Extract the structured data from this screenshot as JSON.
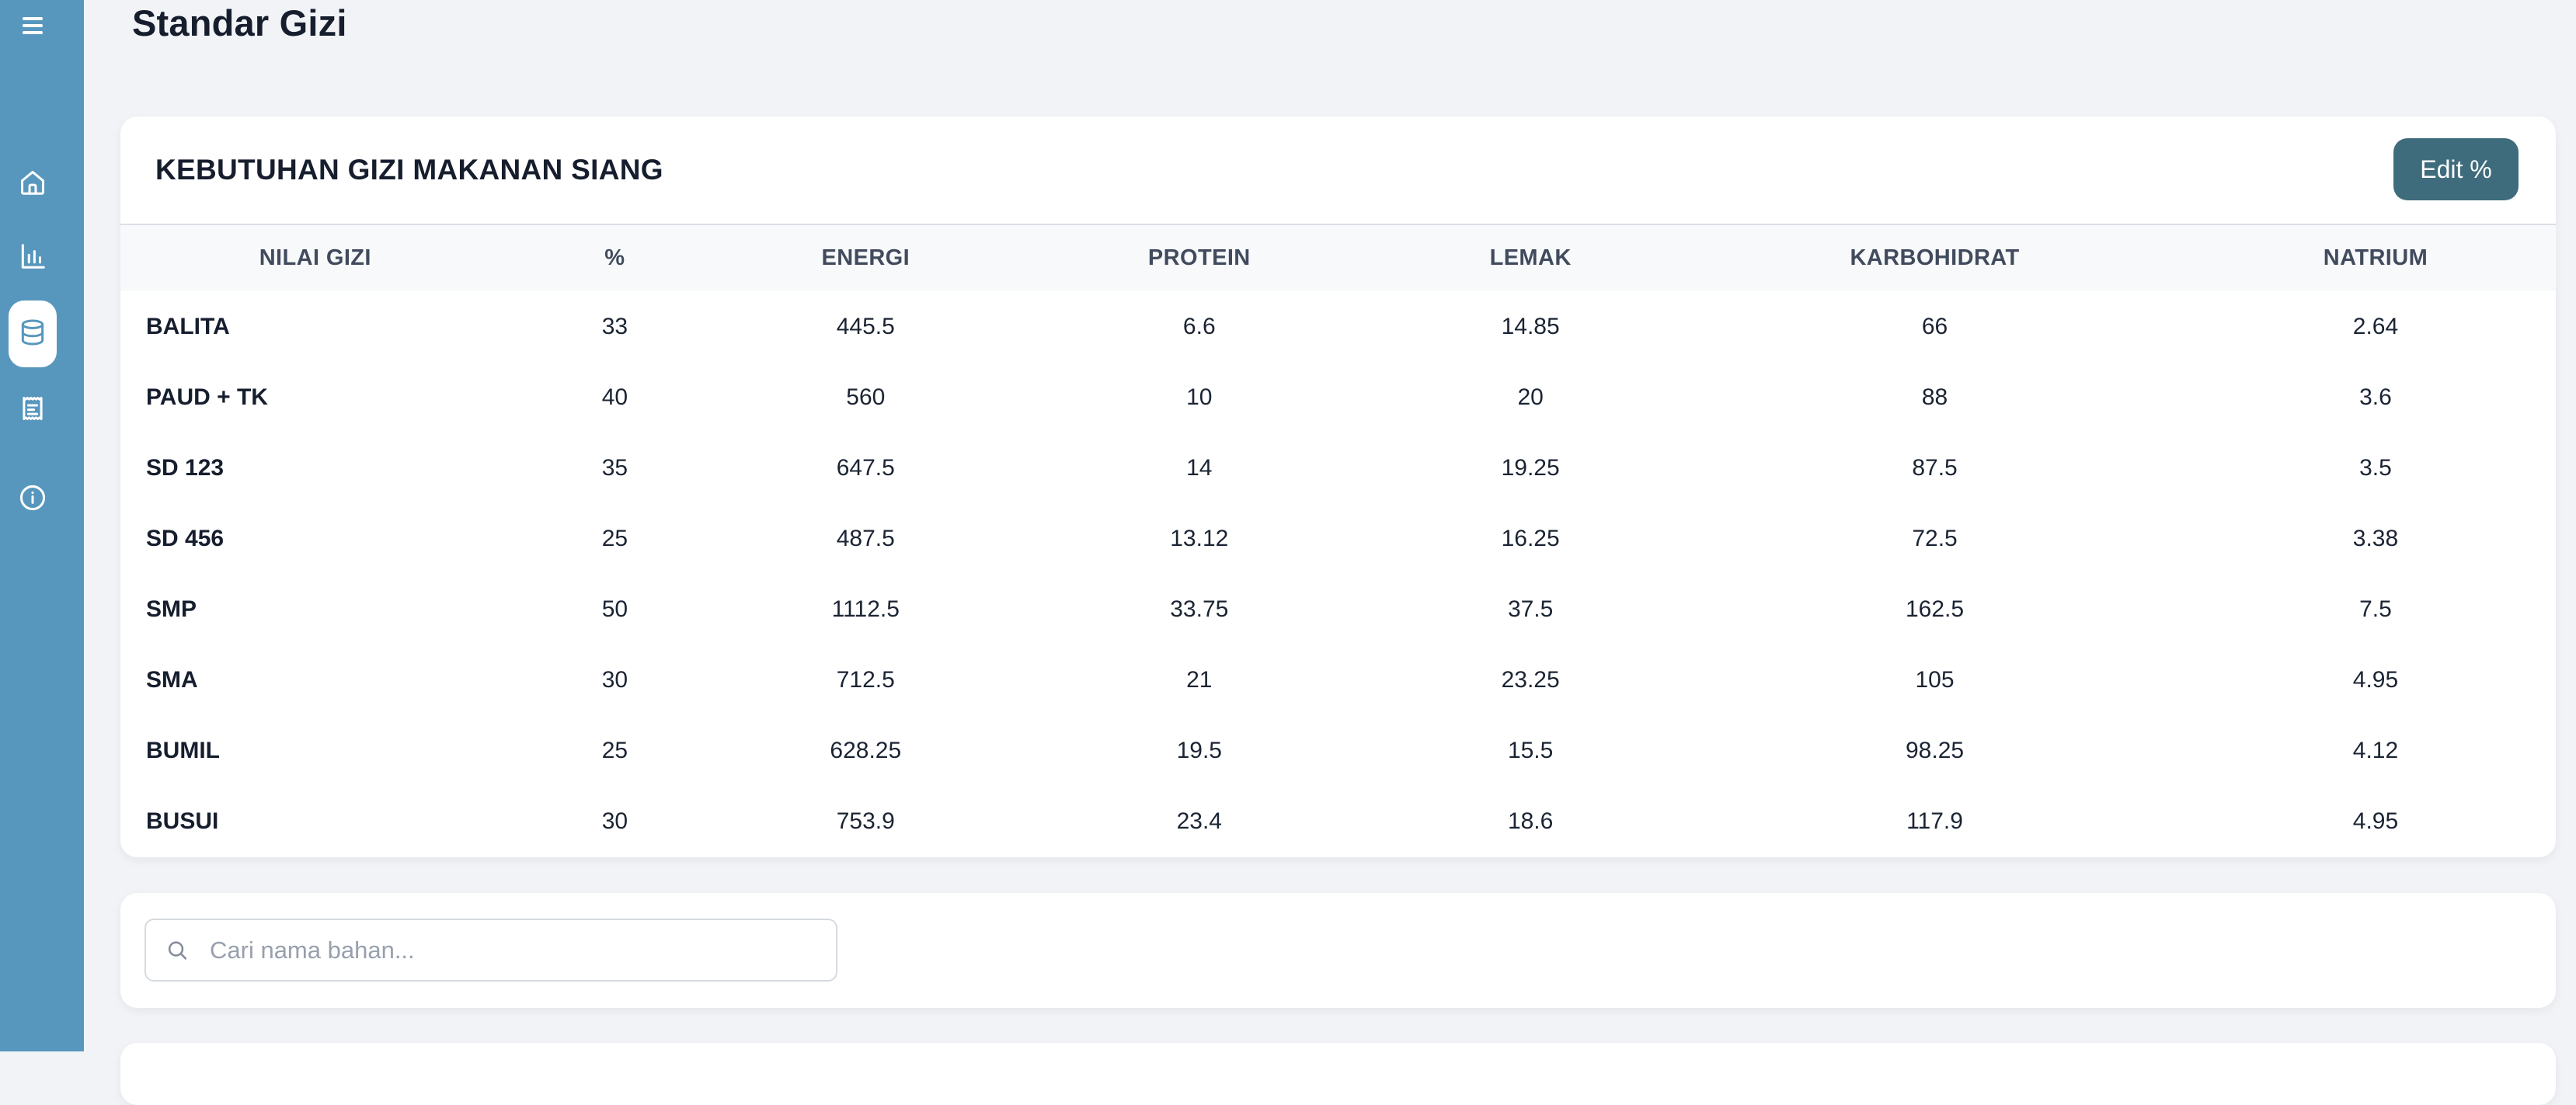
{
  "page": {
    "title": "Standar Gizi"
  },
  "sidebar": {
    "color": "#5897bd",
    "items": [
      {
        "id": "home",
        "icon": "home-icon",
        "active": false
      },
      {
        "id": "statistics",
        "icon": "bar-chart-icon",
        "active": false
      },
      {
        "id": "standar-gizi",
        "icon": "database-icon",
        "active": true
      },
      {
        "id": "reports",
        "icon": "receipt-icon",
        "active": false
      },
      {
        "id": "info",
        "icon": "info-icon",
        "active": false
      }
    ]
  },
  "card": {
    "heading": "KEBUTUHAN GIZI MAKANAN SIANG",
    "edit_button_label": "Edit %",
    "edit_button_color": "#3e6c7c"
  },
  "table": {
    "columns": [
      "NILAI GIZI",
      "%",
      "ENERGI",
      "PROTEIN",
      "LEMAK",
      "KARBOHIDRAT",
      "NATRIUM"
    ],
    "rows": [
      [
        "BALITA",
        "33",
        "445.5",
        "6.6",
        "14.85",
        "66",
        "2.64"
      ],
      [
        "PAUD + TK",
        "40",
        "560",
        "10",
        "20",
        "88",
        "3.6"
      ],
      [
        "SD 123",
        "35",
        "647.5",
        "14",
        "19.25",
        "87.5",
        "3.5"
      ],
      [
        "SD 456",
        "25",
        "487.5",
        "13.12",
        "16.25",
        "72.5",
        "3.38"
      ],
      [
        "SMP",
        "50",
        "1112.5",
        "33.75",
        "37.5",
        "162.5",
        "7.5"
      ],
      [
        "SMA",
        "30",
        "712.5",
        "21",
        "23.25",
        "105",
        "4.95"
      ],
      [
        "BUMIL",
        "25",
        "628.25",
        "19.5",
        "15.5",
        "98.25",
        "4.12"
      ],
      [
        "BUSUI",
        "30",
        "753.9",
        "23.4",
        "18.6",
        "117.9",
        "4.95"
      ]
    ]
  },
  "search": {
    "placeholder": "Cari nama bahan...",
    "value": ""
  },
  "colors": {
    "page_bg": "#f1f3f6",
    "sidebar_bg": "#5897bd",
    "button_teal": "#3e6c7c",
    "table_header_bg": "#f8f9fb",
    "text_dark": "#161e2e",
    "text_header": "#414b5d",
    "placeholder": "#98a0ad"
  }
}
